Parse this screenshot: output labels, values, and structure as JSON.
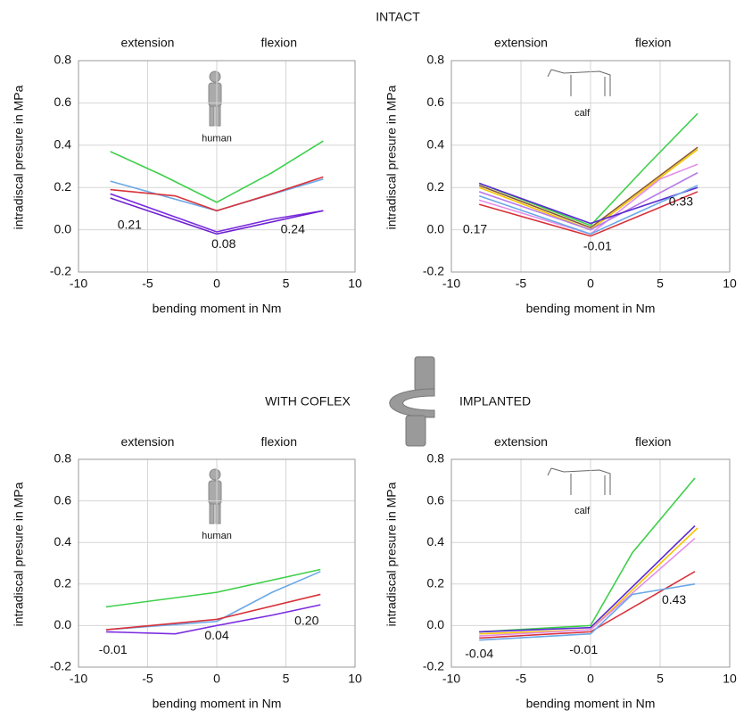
{
  "section_titles": [
    "INTACT",
    "WITH COFLEX",
    "IMPLANTED"
  ],
  "chart_data": [
    {
      "type": "line",
      "xlabel": "bending moment in Nm",
      "ylabel": "intradiscal presure in MPa",
      "xlim": [
        -10,
        10
      ],
      "ylim": [
        -0.2,
        0.8
      ],
      "xticks": [
        -10,
        -5,
        0,
        5,
        10
      ],
      "yticks": [
        -0.2,
        {
          "value": 0,
          "label": "0.0"
        },
        0.2,
        0.4,
        0.6,
        0.8
      ],
      "grid": true,
      "annotations": [
        "extension",
        "flexion",
        "human",
        "0.21",
        "0.08",
        "0.24"
      ],
      "series": [
        {
          "color": "#3ecf4a",
          "x": [
            -7.7,
            -4,
            0,
            4,
            7.7
          ],
          "values": [
            0.37,
            0.26,
            0.13,
            0.27,
            0.42
          ]
        },
        {
          "color": "#6aa8e8",
          "x": [
            -7.7,
            0,
            7.7
          ],
          "values": [
            0.23,
            0.09,
            0.24
          ]
        },
        {
          "color": "#d8323a",
          "x": [
            -7.7,
            -3,
            0,
            4,
            7.7
          ],
          "values": [
            0.19,
            0.16,
            0.09,
            0.17,
            0.25
          ]
        },
        {
          "color": "#7a2be0",
          "x": [
            -7.7,
            0,
            4,
            7.7
          ],
          "values": [
            0.17,
            -0.01,
            0.05,
            0.09
          ]
        },
        {
          "color": "#6d1fd0",
          "x": [
            -7.7,
            0,
            7.7
          ],
          "values": [
            0.15,
            -0.02,
            0.09
          ]
        }
      ]
    },
    {
      "type": "line",
      "xlabel": "bending moment in Nm",
      "ylabel": "intradiscal presure in MPa",
      "xlim": [
        -10,
        10
      ],
      "ylim": [
        -0.2,
        0.8
      ],
      "xticks": [
        -10,
        -5,
        0,
        5,
        10
      ],
      "yticks": [
        -0.2,
        {
          "value": 0,
          "label": "0.0"
        },
        0.2,
        0.4,
        0.6,
        0.8
      ],
      "grid": true,
      "annotations": [
        "extension",
        "flexion",
        "calf",
        "0.17",
        "-0.01",
        "0.33"
      ],
      "series": [
        {
          "color": "#3ecf4a",
          "x": [
            -8,
            0,
            4,
            7.7
          ],
          "values": [
            0.22,
            0.02,
            0.3,
            0.55
          ]
        },
        {
          "color": "#f5c400",
          "x": [
            -8,
            0,
            7.7
          ],
          "values": [
            0.2,
            0,
            0.38
          ]
        },
        {
          "color": "#8a5a2a",
          "x": [
            -8,
            0,
            7.7
          ],
          "values": [
            0.21,
            0.01,
            0.39
          ]
        },
        {
          "color": "#e48ee8",
          "x": [
            -8,
            0,
            5,
            7.7
          ],
          "values": [
            0.14,
            -0.02,
            0.24,
            0.31
          ]
        },
        {
          "color": "#b77be8",
          "x": [
            -8,
            0,
            7.7
          ],
          "values": [
            0.18,
            0,
            0.27
          ]
        },
        {
          "color": "#5a2bd0",
          "x": [
            -8,
            0,
            7.7
          ],
          "values": [
            0.22,
            0.03,
            0.2
          ]
        },
        {
          "color": "#6aa8e8",
          "x": [
            -8,
            0,
            7.7
          ],
          "values": [
            0.16,
            -0.02,
            0.21
          ]
        },
        {
          "color": "#d8323a",
          "x": [
            -8,
            0,
            7.7
          ],
          "values": [
            0.12,
            -0.03,
            0.18
          ]
        }
      ]
    },
    {
      "type": "line",
      "xlabel": "bending moment in Nm",
      "ylabel": "intradiscal presure in MPa",
      "xlim": [
        -10,
        10
      ],
      "ylim": [
        -0.2,
        0.8
      ],
      "xticks": [
        -10,
        -5,
        0,
        5,
        10
      ],
      "yticks": [
        -0.2,
        {
          "value": 0,
          "label": "0.0"
        },
        0.2,
        0.4,
        0.6,
        0.8
      ],
      "grid": true,
      "annotations": [
        "extension",
        "flexion",
        "human",
        "-0.01",
        "0.04",
        "0.20"
      ],
      "series": [
        {
          "color": "#3ecf4a",
          "x": [
            -8,
            0,
            7.5
          ],
          "values": [
            0.09,
            0.16,
            0.27
          ]
        },
        {
          "color": "#6aa8e8",
          "x": [
            -8,
            0,
            4,
            7.5
          ],
          "values": [
            -0.02,
            0.02,
            0.16,
            0.26
          ]
        },
        {
          "color": "#d8323a",
          "x": [
            -8,
            0,
            7.5
          ],
          "values": [
            -0.02,
            0.03,
            0.15
          ]
        },
        {
          "color": "#7a2be0",
          "x": [
            -8,
            -3,
            0,
            4,
            7.5
          ],
          "values": [
            -0.03,
            -0.04,
            0,
            0.05,
            0.1
          ]
        }
      ]
    },
    {
      "type": "line",
      "xlabel": "bending moment in Nm",
      "ylabel": "intradiscal presure in MPa",
      "xlim": [
        -10,
        10
      ],
      "ylim": [
        -0.2,
        0.8
      ],
      "xticks": [
        -10,
        -5,
        0,
        5,
        10
      ],
      "yticks": [
        -0.2,
        {
          "value": 0,
          "label": "0.0"
        },
        0.2,
        0.4,
        0.6,
        0.8
      ],
      "grid": true,
      "annotations": [
        "extension",
        "flexion",
        "calf",
        "-0.04",
        "-0.01",
        "0.43"
      ],
      "series": [
        {
          "color": "#3ecf4a",
          "x": [
            -8,
            0,
            3,
            7.5
          ],
          "values": [
            -0.03,
            0,
            0.35,
            0.71
          ]
        },
        {
          "color": "#5a2bd0",
          "x": [
            -8,
            0,
            7.5
          ],
          "values": [
            -0.03,
            -0.01,
            0.48
          ]
        },
        {
          "color": "#f5c400",
          "x": [
            -8,
            0,
            7.7
          ],
          "values": [
            -0.04,
            -0.02,
            0.47
          ]
        },
        {
          "color": "#e48ee8",
          "x": [
            -8,
            0,
            7.5
          ],
          "values": [
            -0.05,
            -0.02,
            0.42
          ]
        },
        {
          "color": "#d8323a",
          "x": [
            -8,
            0,
            7.5
          ],
          "values": [
            -0.06,
            -0.03,
            0.26
          ]
        },
        {
          "color": "#6aa8e8",
          "x": [
            -8,
            0,
            3,
            7.5
          ],
          "values": [
            -0.07,
            -0.04,
            0.15,
            0.2
          ]
        }
      ]
    }
  ]
}
